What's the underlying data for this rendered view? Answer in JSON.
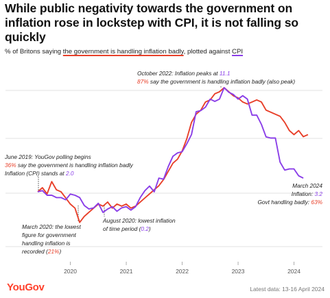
{
  "title": "While public negativity towards the government on inflation rose in lockstep with CPI, it is not falling so quickly",
  "subtitle": {
    "prefix": "% of Britons saying ",
    "series1": "the government is handling inflation badly",
    "middle": ", plotted against ",
    "series2": "CPI"
  },
  "colors": {
    "handling_badly": "#e8402a",
    "cpi": "#8a3ee8"
  },
  "annotations": {
    "peak": {
      "line1": "October 2022: Inflation peaks at ",
      "line1_value": "11.1",
      "line2_value": "87%",
      "line2": " say the government is handling inflation badly (also peak)"
    },
    "start": {
      "line1": "June 2019: YouGov polling begins",
      "line2_value": "36%",
      "line2": " say the government is handling inflation badly",
      "line3": "Inflation (CPI) stands at ",
      "line3_value": "2.0"
    },
    "low_handling": {
      "line1": "March 2020: the lowest",
      "line2": "figure for government",
      "line3": "handling inflation is",
      "line4_prefix": "recorded (",
      "line4_value": "21%",
      "line4_suffix": ")"
    },
    "low_cpi": {
      "line1": "August 2020: lowest inflation",
      "line2_prefix": "of time period (",
      "line2_value": "0.2",
      "line2_suffix": ")"
    },
    "latest": {
      "line1": "March 2024",
      "line2_prefix": "Inflation: ",
      "line2_value": "3.2",
      "line3_prefix": "Govt handling badly: ",
      "line3_value": "63%"
    }
  },
  "logo": "YouGov",
  "latest_data": "Latest data: 13-16 April 2024",
  "chart_data": {
    "type": "line",
    "x_ticks": [
      "2020",
      "2021",
      "2022",
      "2023",
      "2024"
    ],
    "x_range": [
      "2019-06",
      "2024-04"
    ],
    "series": [
      {
        "name": "the government is handling inflation badly",
        "color": "#e8402a",
        "unit": "%",
        "points": [
          [
            "2019-06",
            36
          ],
          [
            "2019-07",
            38
          ],
          [
            "2019-08",
            35
          ],
          [
            "2019-09",
            41
          ],
          [
            "2019-10",
            37
          ],
          [
            "2019-11",
            36
          ],
          [
            "2019-12",
            33
          ],
          [
            "2020-01",
            30
          ],
          [
            "2020-02",
            28
          ],
          [
            "2020-03",
            21
          ],
          [
            "2020-04",
            24
          ],
          [
            "2020-05",
            26
          ],
          [
            "2020-06",
            28
          ],
          [
            "2020-07",
            30
          ],
          [
            "2020-08",
            29
          ],
          [
            "2020-09",
            31
          ],
          [
            "2020-10",
            28
          ],
          [
            "2020-11",
            30
          ],
          [
            "2020-12",
            29
          ],
          [
            "2021-01",
            30
          ],
          [
            "2021-02",
            28
          ],
          [
            "2021-03",
            29
          ],
          [
            "2021-04",
            31
          ],
          [
            "2021-05",
            33
          ],
          [
            "2021-06",
            35
          ],
          [
            "2021-07",
            37
          ],
          [
            "2021-08",
            39
          ],
          [
            "2021-09",
            42
          ],
          [
            "2021-10",
            46
          ],
          [
            "2021-11",
            50
          ],
          [
            "2021-12",
            52
          ],
          [
            "2022-01",
            56
          ],
          [
            "2022-02",
            62
          ],
          [
            "2022-03",
            70
          ],
          [
            "2022-04",
            74
          ],
          [
            "2022-05",
            76
          ],
          [
            "2022-06",
            80
          ],
          [
            "2022-07",
            81
          ],
          [
            "2022-08",
            84
          ],
          [
            "2022-09",
            85
          ],
          [
            "2022-10",
            87
          ],
          [
            "2022-11",
            85
          ],
          [
            "2022-12",
            83
          ],
          [
            "2023-01",
            82
          ],
          [
            "2023-02",
            80
          ],
          [
            "2023-03",
            79
          ],
          [
            "2023-04",
            80
          ],
          [
            "2023-05",
            81
          ],
          [
            "2023-06",
            80
          ],
          [
            "2023-07",
            76
          ],
          [
            "2023-08",
            75
          ],
          [
            "2023-09",
            74
          ],
          [
            "2023-10",
            73
          ],
          [
            "2023-11",
            70
          ],
          [
            "2023-12",
            66
          ],
          [
            "2024-01",
            64
          ],
          [
            "2024-02",
            66
          ],
          [
            "2024-03",
            63
          ],
          [
            "2024-04",
            64
          ]
        ]
      },
      {
        "name": "CPI",
        "color": "#8a3ee8",
        "unit": "%",
        "points": [
          [
            "2019-06",
            2.0
          ],
          [
            "2019-07",
            2.1
          ],
          [
            "2019-08",
            1.7
          ],
          [
            "2019-09",
            1.7
          ],
          [
            "2019-10",
            1.5
          ],
          [
            "2019-11",
            1.5
          ],
          [
            "2019-12",
            1.3
          ],
          [
            "2020-01",
            1.8
          ],
          [
            "2020-02",
            1.7
          ],
          [
            "2020-03",
            1.5
          ],
          [
            "2020-04",
            0.8
          ],
          [
            "2020-05",
            0.5
          ],
          [
            "2020-06",
            0.6
          ],
          [
            "2020-07",
            1.0
          ],
          [
            "2020-08",
            0.2
          ],
          [
            "2020-09",
            0.5
          ],
          [
            "2020-10",
            0.7
          ],
          [
            "2020-11",
            0.3
          ],
          [
            "2020-12",
            0.6
          ],
          [
            "2021-01",
            0.7
          ],
          [
            "2021-02",
            0.4
          ],
          [
            "2021-03",
            0.7
          ],
          [
            "2021-04",
            1.5
          ],
          [
            "2021-05",
            2.1
          ],
          [
            "2021-06",
            2.5
          ],
          [
            "2021-07",
            2.0
          ],
          [
            "2021-08",
            3.2
          ],
          [
            "2021-09",
            3.1
          ],
          [
            "2021-10",
            4.2
          ],
          [
            "2021-11",
            5.1
          ],
          [
            "2021-12",
            5.4
          ],
          [
            "2022-01",
            5.5
          ],
          [
            "2022-02",
            6.2
          ],
          [
            "2022-03",
            7.0
          ],
          [
            "2022-04",
            9.0
          ],
          [
            "2022-05",
            9.1
          ],
          [
            "2022-06",
            9.4
          ],
          [
            "2022-07",
            10.1
          ],
          [
            "2022-08",
            9.9
          ],
          [
            "2022-09",
            10.1
          ],
          [
            "2022-10",
            11.1
          ],
          [
            "2022-11",
            10.7
          ],
          [
            "2022-12",
            10.5
          ],
          [
            "2023-01",
            10.1
          ],
          [
            "2023-02",
            10.4
          ],
          [
            "2023-03",
            10.1
          ],
          [
            "2023-04",
            8.7
          ],
          [
            "2023-05",
            8.7
          ],
          [
            "2023-06",
            7.9
          ],
          [
            "2023-07",
            6.8
          ],
          [
            "2023-08",
            6.7
          ],
          [
            "2023-09",
            6.7
          ],
          [
            "2023-10",
            4.6
          ],
          [
            "2023-11",
            3.9
          ],
          [
            "2023-12",
            4.0
          ],
          [
            "2024-01",
            4.0
          ],
          [
            "2024-02",
            3.4
          ],
          [
            "2024-03",
            3.2
          ]
        ]
      }
    ]
  }
}
